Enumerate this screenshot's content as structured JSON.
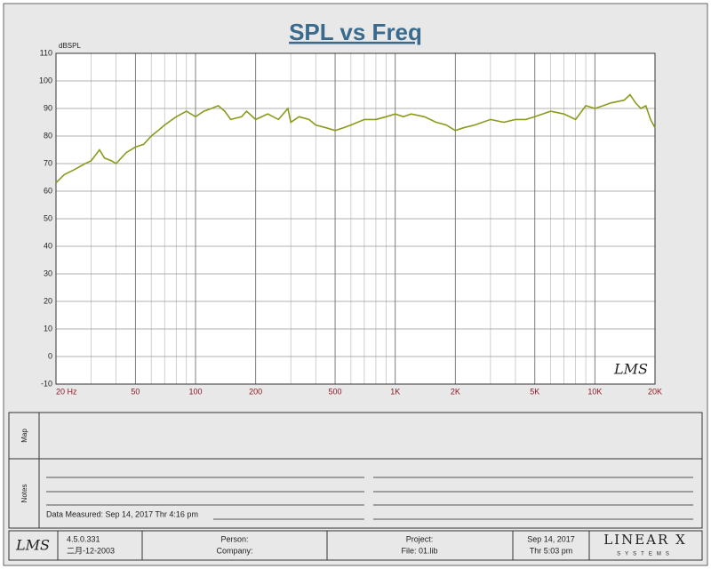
{
  "chart_data": {
    "type": "line",
    "title": "SPL vs Freq",
    "y_label": "dBSPL",
    "x": [
      20,
      22,
      25,
      28,
      30,
      33,
      35,
      38,
      40,
      45,
      50,
      55,
      60,
      65,
      70,
      80,
      90,
      100,
      110,
      120,
      130,
      140,
      150,
      170,
      180,
      200,
      230,
      260,
      290,
      300,
      330,
      370,
      400,
      450,
      500,
      550,
      600,
      700,
      800,
      900,
      1000,
      1100,
      1200,
      1400,
      1600,
      1800,
      2000,
      2200,
      2500,
      3000,
      3500,
      4000,
      4500,
      5000,
      6000,
      7000,
      8000,
      9000,
      10000,
      11000,
      12000,
      14000,
      15000,
      16000,
      17000,
      18000,
      19000,
      20000
    ],
    "series": [
      {
        "name": "SPL",
        "color": "#8c9a1c",
        "values": [
          63,
          66,
          68,
          70,
          71,
          75,
          72,
          71,
          70,
          74,
          76,
          77,
          80,
          82,
          84,
          87,
          89,
          87,
          89,
          90,
          91,
          89,
          86,
          87,
          89,
          86,
          88,
          86,
          90,
          85,
          87,
          86,
          84,
          83,
          82,
          83,
          84,
          86,
          86,
          87,
          88,
          87,
          88,
          87,
          85,
          84,
          82,
          83,
          84,
          86,
          85,
          86,
          86,
          87,
          89,
          88,
          86,
          91,
          90,
          91,
          92,
          93,
          95,
          92,
          90,
          91,
          86,
          83
        ]
      }
    ],
    "xlim": [
      20,
      20000
    ],
    "log_x": true,
    "xticks": [
      {
        "value": 20,
        "label": "20 Hz"
      },
      50,
      100,
      200,
      500,
      {
        "value": 1000,
        "label": "1K"
      },
      {
        "value": 2000,
        "label": "2K"
      },
      {
        "value": 5000,
        "label": "5K"
      },
      {
        "value": 10000,
        "label": "10K"
      },
      {
        "value": 20000,
        "label": "20K"
      }
    ],
    "ylim": [
      -10,
      110
    ],
    "yticks": [
      -10,
      0,
      10,
      20,
      30,
      40,
      50,
      60,
      70,
      80,
      90,
      100,
      110
    ],
    "grid": true
  },
  "panel": {
    "plot_logo": "LMS",
    "map_label": "Map",
    "notes_label": "Notes",
    "data_measured": "Data Measured: Sep 14, 2017  Thr  4:16 pm",
    "footer": {
      "logo": "LMS",
      "version": "4.5.0.331",
      "version_date": "二月-12-2003",
      "person": "Person:",
      "company": "Company:",
      "project": "Project:",
      "file": "File: 01.lib",
      "date": "Sep 14, 2017",
      "time": "Thr  5:03 pm",
      "brand": "LINEAR X",
      "brand_sub": "SYSTEMS"
    }
  }
}
